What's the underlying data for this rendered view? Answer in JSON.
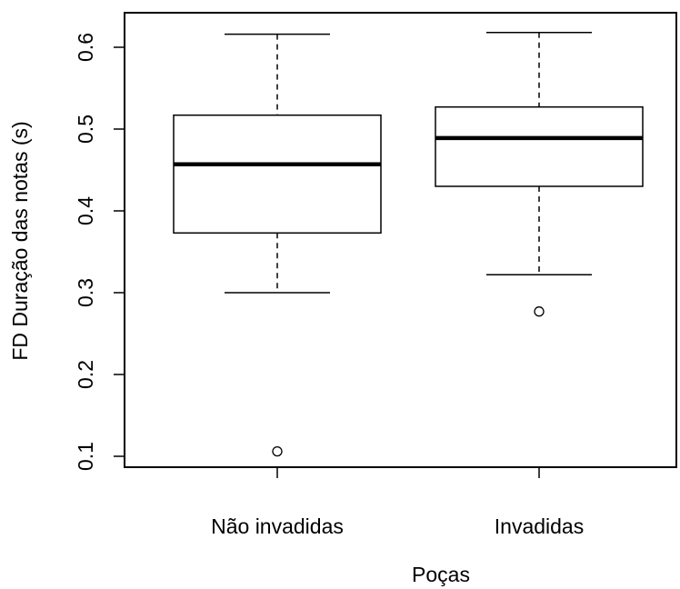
{
  "chart_data": {
    "type": "boxplot",
    "title": "",
    "xlabel": "Poças",
    "ylabel": "FD Duração das notas (s)",
    "ylim": [
      0.08,
      0.64
    ],
    "yticks": [
      0.1,
      0.2,
      0.3,
      0.4,
      0.5,
      0.6
    ],
    "ytick_labels": [
      "0.1",
      "0.2",
      "0.3",
      "0.4",
      "0.5",
      "0.6"
    ],
    "grid": false,
    "legend": "none",
    "categories": [
      "Não invadidas",
      "Invadidas"
    ],
    "boxes": [
      {
        "category": "Não invadidas",
        "whisker_low": 0.3,
        "q1": 0.373,
        "median": 0.457,
        "q3": 0.517,
        "whisker_high": 0.616,
        "outliers": [
          0.106
        ]
      },
      {
        "category": "Invadidas",
        "whisker_low": 0.322,
        "q1": 0.43,
        "median": 0.489,
        "q3": 0.527,
        "whisker_high": 0.618,
        "outliers": [
          0.277
        ]
      }
    ]
  }
}
